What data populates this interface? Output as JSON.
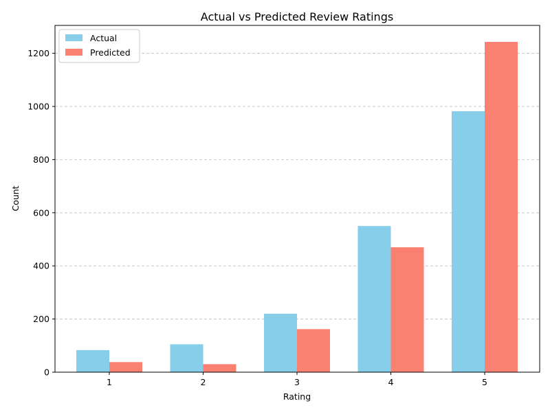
{
  "chart_data": {
    "type": "bar",
    "title": "Actual vs Predicted Review Ratings",
    "xlabel": "Rating",
    "ylabel": "Count",
    "categories": [
      "1",
      "2",
      "3",
      "4",
      "5"
    ],
    "series": [
      {
        "name": "Actual",
        "color": "#87ceeb",
        "values": [
          83,
          105,
          220,
          550,
          982
        ]
      },
      {
        "name": "Predicted",
        "color": "#fa8072",
        "values": [
          38,
          30,
          162,
          470,
          1243
        ]
      }
    ],
    "ylim": [
      0,
      1305
    ],
    "yticks": [
      0,
      200,
      400,
      600,
      800,
      1000,
      1200
    ],
    "grid": "y-axis dashed",
    "legend_position": "top-left"
  }
}
